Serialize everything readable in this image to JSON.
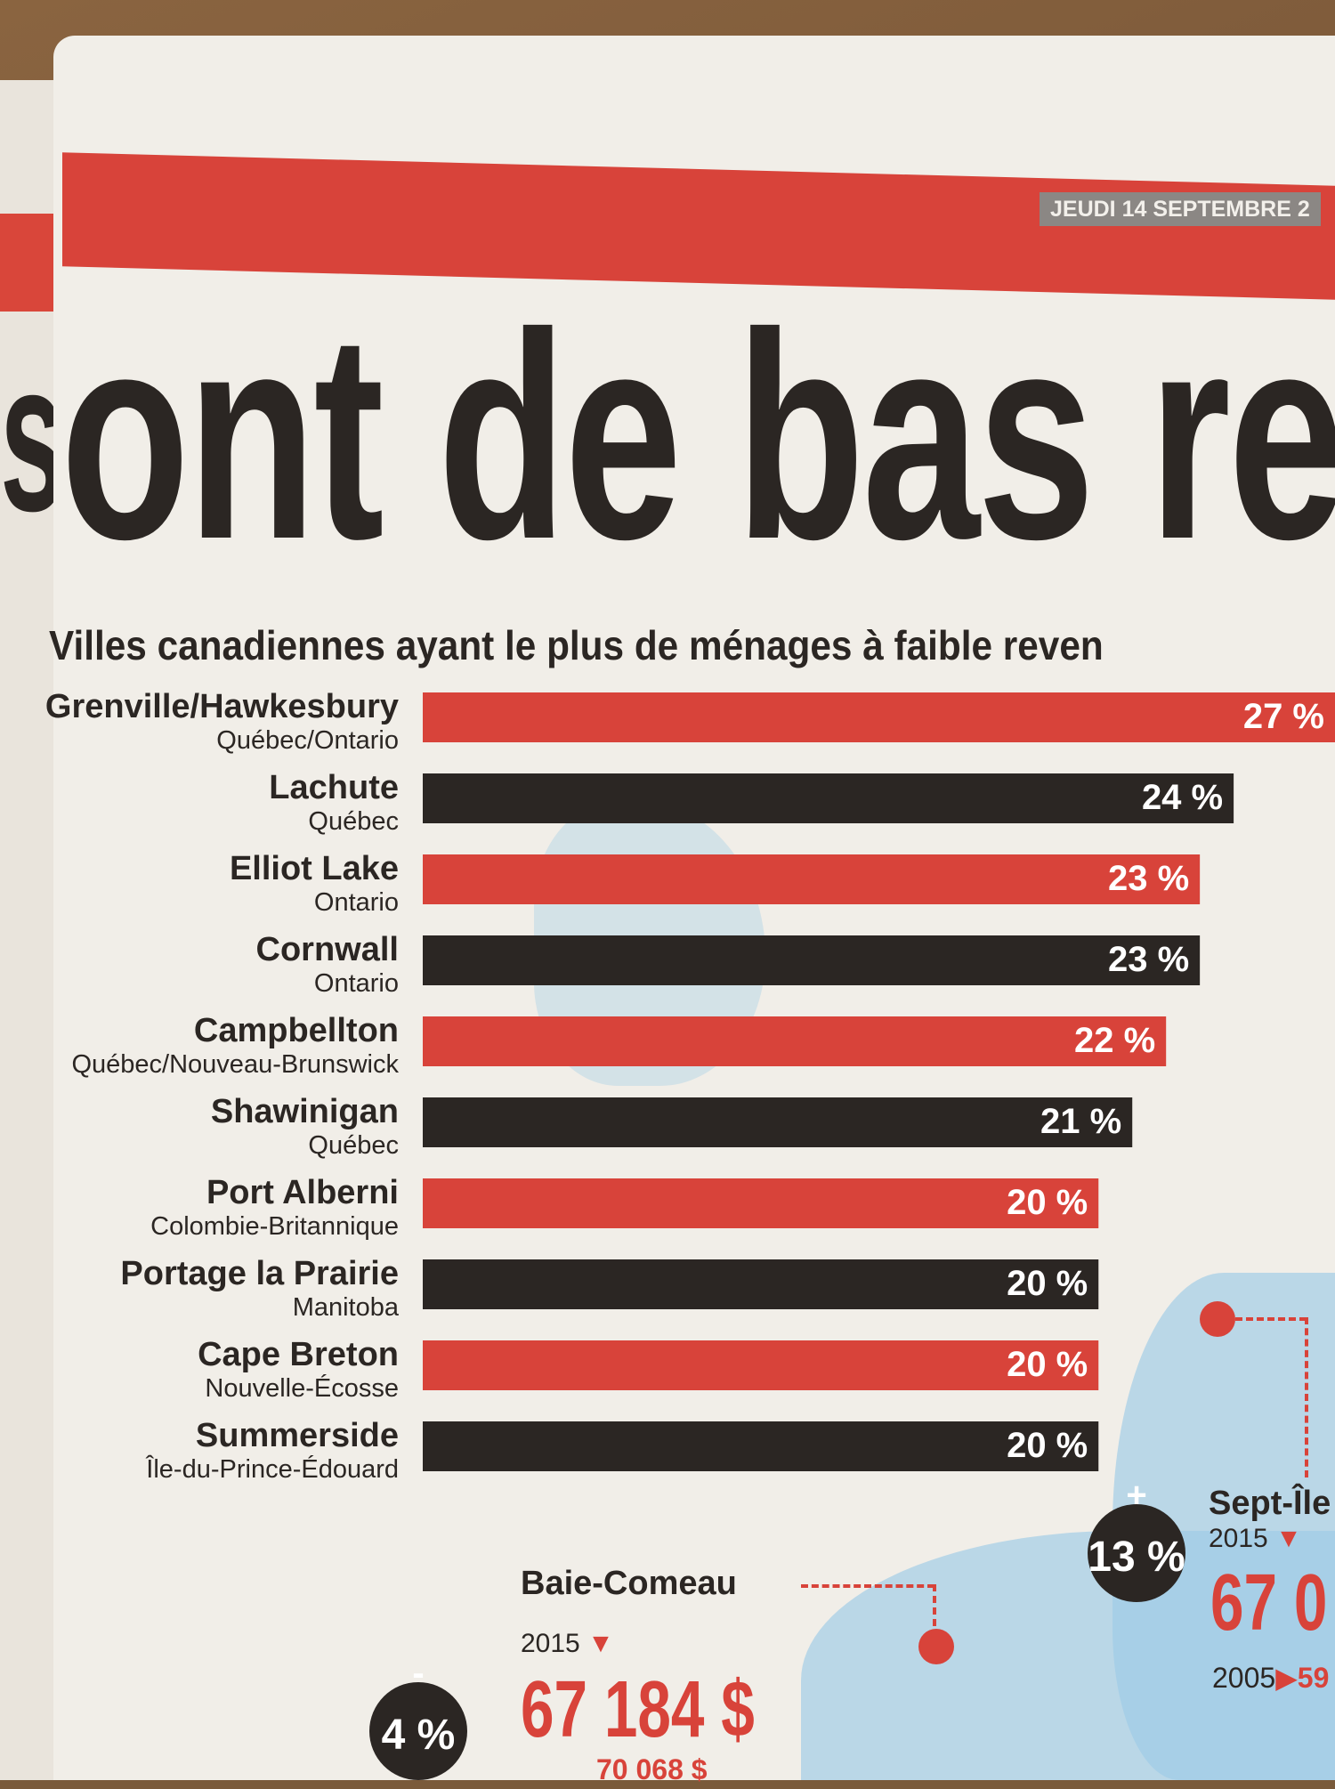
{
  "header": {
    "date": "JEUDI 14 SEPTEMBRE 2",
    "headline": "ont de bas reven",
    "left_page_fragment": "s"
  },
  "chart_data": {
    "type": "bar",
    "orientation": "horizontal",
    "title": "Villes canadiennes ayant le plus de ménages à faible reven",
    "unit": "%",
    "categories": [
      "Grenville/Hawkesbury",
      "Lachute",
      "Elliot Lake",
      "Cornwall",
      "Campbellton",
      "Shawinigan",
      "Port Alberni",
      "Portage la Prairie",
      "Cape Breton",
      "Summerside"
    ],
    "subcategories": [
      "Québec/Ontario",
      "Québec",
      "Ontario",
      "Ontario",
      "Québec/Nouveau-Brunswick",
      "Québec",
      "Colombie-Britannique",
      "Manitoba",
      "Nouvelle-Écosse",
      "Île-du-Prince-Édouard"
    ],
    "values": [
      27,
      24,
      23,
      23,
      22,
      21,
      20,
      20,
      20,
      20
    ],
    "value_labels": [
      "27 %",
      "24 %",
      "23 %",
      "23 %",
      "22 %",
      "21 %",
      "20 %",
      "20 %",
      "20 %",
      "20 %"
    ],
    "xlim": [
      0,
      27
    ],
    "bar_colors": [
      "#d8433a",
      "#2b2623"
    ]
  },
  "callouts": {
    "baie_comeau": {
      "city": "Baie-Comeau",
      "year": "2015",
      "value": "67 184 $",
      "change": "4 %",
      "change_sign": "-",
      "old_value": "70 068 $"
    },
    "sept_iles": {
      "city": "Sept-Île",
      "year": "2015",
      "value": "67 0",
      "change": "13 %",
      "change_sign": "+",
      "old_year": "2005",
      "old_value": "59"
    }
  },
  "colors": {
    "red": "#d8433a",
    "dark": "#2b2623",
    "paper": "#f1eee8"
  }
}
